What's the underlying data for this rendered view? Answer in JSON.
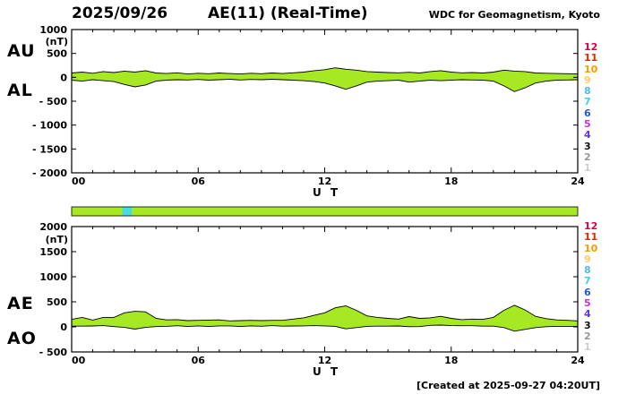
{
  "header": {
    "date": "2025/09/26",
    "title": "AE(11) (Real-Time)",
    "source": "WDC for Geomagnetism, Kyoto"
  },
  "footer": {
    "created": "[Created at 2025-09-27 04:20UT]"
  },
  "colors": {
    "band_fill": "#a6e822",
    "trace_line": "#000000",
    "bar_fill": "#a6e822",
    "bar_highlight": "#44dddd",
    "background": "#ffffff"
  },
  "stations": [
    {
      "id": "12",
      "color": "#dd0044"
    },
    {
      "id": "11",
      "color": "#ee2200"
    },
    {
      "id": "10",
      "color": "#ff9900"
    },
    {
      "id": "9",
      "color": "#ffcc66"
    },
    {
      "id": "8",
      "color": "#55bbee"
    },
    {
      "id": "7",
      "color": "#44ccee"
    },
    {
      "id": "6",
      "color": "#2255ee"
    },
    {
      "id": "5",
      "color": "#cc33cc"
    },
    {
      "id": "4",
      "color": "#6633ee"
    },
    {
      "id": "3",
      "color": "#111111"
    },
    {
      "id": "2",
      "color": "#999999"
    },
    {
      "id": "1",
      "color": "#cccccc"
    }
  ],
  "availability_bar": {
    "range_hours": [
      0,
      24
    ],
    "segments": [
      {
        "start": 0,
        "end": 24,
        "color": "#a6e822"
      },
      {
        "start": 2.4,
        "end": 2.85,
        "color": "#44dddd"
      }
    ]
  },
  "chart_data": [
    {
      "type": "area",
      "title": "AU / AL indices (nT)",
      "ylabel": "(nT)",
      "xlabel": "U T",
      "x_range_hours": [
        0,
        24
      ],
      "x_step_hours": 0.5,
      "ylim": [
        -2000,
        1000
      ],
      "yticks": [
        1000,
        500,
        0,
        -500,
        -1000,
        -1500,
        -2000
      ],
      "ytick_labels": [
        "1000",
        "500",
        "0",
        "- 500",
        "- 1000",
        "- 1500",
        "- 2000"
      ],
      "xticks": [
        0,
        6,
        12,
        18,
        24
      ],
      "xtick_labels": [
        "00",
        "06",
        "12",
        "18",
        "24"
      ],
      "grid": false,
      "series": [
        {
          "name": "AU",
          "values": [
            90,
            110,
            85,
            120,
            100,
            130,
            110,
            140,
            90,
            80,
            95,
            70,
            85,
            75,
            90,
            80,
            70,
            85,
            75,
            90,
            80,
            95,
            110,
            140,
            160,
            200,
            170,
            150,
            120,
            110,
            100,
            95,
            105,
            90,
            120,
            140,
            110,
            95,
            100,
            90,
            110,
            150,
            130,
            120,
            90,
            85,
            80,
            75,
            70
          ]
        },
        {
          "name": "AL",
          "values": [
            -60,
            -80,
            -50,
            -70,
            -90,
            -150,
            -200,
            -160,
            -80,
            -60,
            -50,
            -55,
            -45,
            -60,
            -50,
            -40,
            -55,
            -45,
            -50,
            -40,
            -50,
            -60,
            -70,
            -90,
            -120,
            -180,
            -250,
            -180,
            -100,
            -80,
            -70,
            -60,
            -100,
            -80,
            -60,
            -70,
            -60,
            -50,
            -55,
            -60,
            -80,
            -180,
            -300,
            -220,
            -120,
            -80,
            -60,
            -55,
            -50
          ]
        }
      ]
    },
    {
      "type": "area",
      "title": "AE / AO indices (nT)",
      "ylabel": "(nT)",
      "xlabel": "U T",
      "x_range_hours": [
        0,
        24
      ],
      "x_step_hours": 0.5,
      "ylim": [
        -500,
        2000
      ],
      "yticks": [
        2000,
        1500,
        1000,
        500,
        0,
        -500
      ],
      "ytick_labels": [
        "2000",
        "1500",
        "1000",
        "500",
        "0",
        "- 500"
      ],
      "xticks": [
        0,
        6,
        12,
        18,
        24
      ],
      "xtick_labels": [
        "00",
        "06",
        "12",
        "18",
        "24"
      ],
      "grid": false,
      "series": [
        {
          "name": "AE",
          "values": [
            150,
            190,
            135,
            190,
            190,
            280,
            310,
            300,
            170,
            140,
            145,
            125,
            130,
            135,
            140,
            120,
            125,
            130,
            125,
            130,
            130,
            155,
            180,
            230,
            280,
            380,
            420,
            330,
            220,
            190,
            170,
            155,
            205,
            170,
            180,
            210,
            170,
            145,
            155,
            150,
            190,
            330,
            430,
            340,
            210,
            165,
            140,
            130,
            120
          ]
        },
        {
          "name": "AO",
          "values": [
            15,
            15,
            18,
            25,
            5,
            -10,
            -45,
            -10,
            5,
            10,
            23,
            8,
            20,
            8,
            20,
            20,
            8,
            20,
            13,
            25,
            15,
            18,
            20,
            25,
            20,
            10,
            -40,
            -15,
            10,
            15,
            15,
            18,
            3,
            5,
            30,
            35,
            25,
            23,
            23,
            15,
            15,
            -15,
            -85,
            -50,
            -15,
            3,
            10,
            10,
            10
          ]
        }
      ]
    }
  ]
}
